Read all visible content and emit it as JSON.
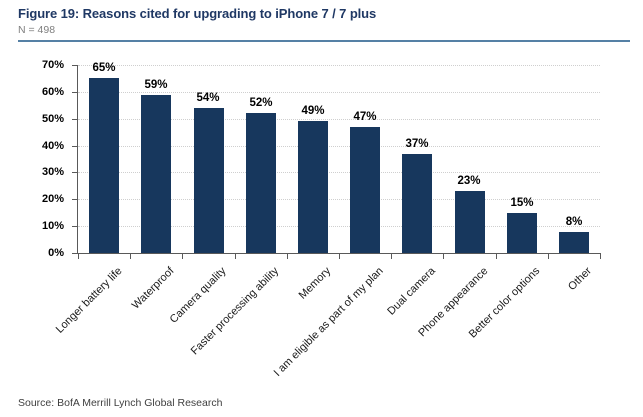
{
  "header": {
    "title": "Figure 19: Reasons cited for upgrading to iPhone 7 / 7 plus",
    "n_label": "N = 498"
  },
  "footer": {
    "source": "Source: BofA Merrill Lynch Global Research"
  },
  "colors": {
    "bar": "#17375d",
    "title_navy": "#1f3864",
    "header_rule": "#5580a5",
    "subtitle_gray": "#7f7f7f",
    "axis_gray": "#595959",
    "gridline_gray": "#cfcfcf"
  },
  "chart_data": {
    "type": "bar",
    "title": "Figure 19: Reasons cited for upgrading to iPhone 7 / 7 plus",
    "subtitle": "N = 498",
    "categories": [
      "Longer battery life",
      "Waterproof",
      "Camera quality",
      "Faster processing ability",
      "Memory",
      "I am eligible as part of my plan",
      "Dual camera",
      "Phone appearance",
      "Better color options",
      "Other"
    ],
    "values": [
      65,
      59,
      54,
      52,
      49,
      47,
      37,
      23,
      15,
      8
    ],
    "value_labels": [
      "65%",
      "59%",
      "54%",
      "52%",
      "49%",
      "47%",
      "37%",
      "23%",
      "15%",
      "8%"
    ],
    "xlabel": "",
    "ylabel": "",
    "ylim": [
      0,
      70
    ],
    "ytick_step": 10,
    "ytick_labels": [
      "0%",
      "10%",
      "20%",
      "30%",
      "40%",
      "50%",
      "60%",
      "70%"
    ],
    "grid": "horizontal-dotted",
    "legend": "none",
    "bar_color": "#17375d",
    "category_label_rotation_deg": -45
  }
}
